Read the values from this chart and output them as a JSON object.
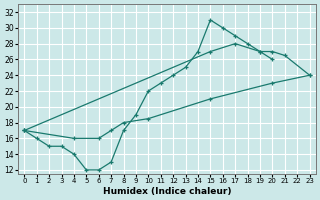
{
  "bg_color": "#cce8e8",
  "grid_color": "#ffffff",
  "line_color": "#1a7a6e",
  "xlabel": "Humidex (Indice chaleur)",
  "xlim": [
    -0.5,
    23.5
  ],
  "ylim": [
    11.5,
    33.0
  ],
  "xticks": [
    0,
    1,
    2,
    3,
    4,
    5,
    6,
    7,
    8,
    9,
    10,
    11,
    12,
    13,
    14,
    15,
    16,
    17,
    18,
    19,
    20,
    21,
    22,
    23
  ],
  "yticks": [
    12,
    14,
    16,
    18,
    20,
    22,
    24,
    26,
    28,
    30,
    32
  ],
  "curve_x": [
    0,
    1,
    2,
    3,
    4,
    5,
    6,
    7,
    8,
    9,
    10,
    11,
    12,
    13,
    14,
    15,
    16,
    17,
    18,
    19,
    20
  ],
  "curve_y": [
    17,
    16,
    15,
    15,
    14,
    12,
    12,
    13,
    17,
    19,
    22,
    23,
    24,
    25,
    27,
    31,
    30,
    29,
    28,
    27,
    26
  ],
  "line_upper_x": [
    0,
    15,
    17,
    19,
    20,
    21,
    23
  ],
  "line_upper_y": [
    17,
    27,
    28,
    27,
    27,
    26.5,
    24
  ],
  "line_lower_x": [
    0,
    4,
    6,
    7,
    8,
    10,
    15,
    20,
    23
  ],
  "line_lower_y": [
    17,
    16,
    16,
    17,
    18,
    18.5,
    21,
    23,
    24
  ]
}
